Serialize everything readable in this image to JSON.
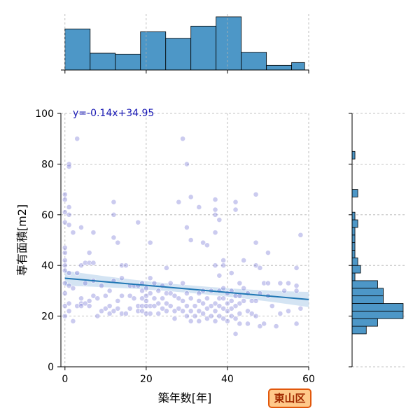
{
  "colors": {
    "scatter": "#6b6bd0",
    "scatter_dark": "#1f1f8f",
    "regression_line": "#1f77b4",
    "ci_band": "#c6dbef",
    "hist_fill": "#4d97c7",
    "hist_edge": "#000000",
    "badge_bg": "#ffc98a",
    "badge_border": "#e2580c",
    "badge_text": "#a22a00"
  },
  "badge": {
    "text": "東山区"
  },
  "chart_data": [
    {
      "type": "scatter",
      "xlabel": "築年数[年]",
      "ylabel": "専有面積[m2]",
      "xlim": [
        -1,
        60
      ],
      "ylim": [
        0,
        100
      ],
      "xticks": [
        0,
        20,
        40,
        60
      ],
      "yticks": [
        0,
        20,
        40,
        60,
        80,
        100
      ],
      "grid": true,
      "annotation": "y=-0.14x+34.95",
      "regression": {
        "slope": -0.14,
        "intercept": 34.95,
        "ci_half_width_at_ends": 3,
        "ci_half_width_at_center": 1.5
      },
      "points": [
        [
          0,
          68
        ],
        [
          0,
          66
        ],
        [
          0,
          61
        ],
        [
          0,
          57
        ],
        [
          0,
          47
        ],
        [
          0,
          45
        ],
        [
          0,
          42
        ],
        [
          0,
          40
        ],
        [
          0,
          38
        ],
        [
          0,
          33
        ],
        [
          0,
          29
        ],
        [
          0,
          24
        ],
        [
          0,
          20
        ],
        [
          1,
          80
        ],
        [
          1,
          79
        ],
        [
          1,
          63
        ],
        [
          1,
          60
        ],
        [
          1,
          56
        ],
        [
          1,
          37
        ],
        [
          1,
          32
        ],
        [
          1,
          25
        ],
        [
          1,
          22
        ],
        [
          2,
          18
        ],
        [
          2,
          31
        ],
        [
          2,
          53
        ],
        [
          3,
          90
        ],
        [
          3,
          37
        ],
        [
          3,
          24
        ],
        [
          4,
          55
        ],
        [
          4,
          40
        ],
        [
          4,
          27
        ],
        [
          4,
          25
        ],
        [
          4,
          24
        ],
        [
          5,
          41
        ],
        [
          5,
          33
        ],
        [
          5,
          25
        ],
        [
          6,
          45
        ],
        [
          6,
          41
        ],
        [
          6,
          26
        ],
        [
          6,
          24
        ],
        [
          7,
          53
        ],
        [
          7,
          41
        ],
        [
          7,
          34
        ],
        [
          7,
          28
        ],
        [
          8,
          27
        ],
        [
          8,
          20
        ],
        [
          9,
          32
        ],
        [
          9,
          22
        ],
        [
          10,
          28
        ],
        [
          10,
          23
        ],
        [
          11,
          30
        ],
        [
          11,
          24
        ],
        [
          11,
          21
        ],
        [
          12,
          65
        ],
        [
          12,
          51
        ],
        [
          12,
          60
        ],
        [
          12,
          34
        ],
        [
          12,
          22
        ],
        [
          13,
          49
        ],
        [
          13,
          26
        ],
        [
          13,
          23
        ],
        [
          14,
          40
        ],
        [
          14,
          35
        ],
        [
          14,
          21
        ],
        [
          14,
          28
        ],
        [
          15,
          40
        ],
        [
          15,
          21
        ],
        [
          16,
          28
        ],
        [
          16,
          23
        ],
        [
          16,
          32
        ],
        [
          17,
          32
        ],
        [
          17,
          27
        ],
        [
          18,
          57
        ],
        [
          18,
          32
        ],
        [
          18,
          24
        ],
        [
          18,
          22
        ],
        [
          19,
          33
        ],
        [
          19,
          30
        ],
        [
          19,
          27
        ],
        [
          19,
          24
        ],
        [
          19,
          22
        ],
        [
          20,
          31
        ],
        [
          20,
          28
        ],
        [
          20,
          26
        ],
        [
          20,
          24
        ],
        [
          20,
          21
        ],
        [
          21,
          49
        ],
        [
          21,
          35
        ],
        [
          21,
          29
        ],
        [
          21,
          24
        ],
        [
          21,
          21
        ],
        [
          22,
          33
        ],
        [
          22,
          27
        ],
        [
          22,
          24
        ],
        [
          23,
          30
        ],
        [
          23,
          25
        ],
        [
          23,
          21
        ],
        [
          24,
          32
        ],
        [
          24,
          27
        ],
        [
          24,
          23
        ],
        [
          25,
          39
        ],
        [
          25,
          29
        ],
        [
          25,
          25
        ],
        [
          25,
          22
        ],
        [
          26,
          33
        ],
        [
          26,
          29
        ],
        [
          26,
          24
        ],
        [
          27,
          28
        ],
        [
          27,
          22
        ],
        [
          27,
          19
        ],
        [
          28,
          65
        ],
        [
          28,
          27
        ],
        [
          28,
          23
        ],
        [
          29,
          90
        ],
        [
          29,
          33
        ],
        [
          29,
          26
        ],
        [
          29,
          22
        ],
        [
          30,
          80
        ],
        [
          30,
          55
        ],
        [
          30,
          29
        ],
        [
          30,
          24
        ],
        [
          30,
          20
        ],
        [
          31,
          67
        ],
        [
          31,
          50
        ],
        [
          31,
          27
        ],
        [
          31,
          22
        ],
        [
          31,
          18
        ],
        [
          32,
          24
        ],
        [
          32,
          20
        ],
        [
          33,
          63
        ],
        [
          33,
          29
        ],
        [
          33,
          26
        ],
        [
          33,
          22
        ],
        [
          33,
          18
        ],
        [
          34,
          49
        ],
        [
          34,
          30
        ],
        [
          34,
          25
        ],
        [
          34,
          21
        ],
        [
          35,
          27
        ],
        [
          35,
          23
        ],
        [
          35,
          19
        ],
        [
          36,
          30
        ],
        [
          36,
          24
        ],
        [
          36,
          20
        ],
        [
          37,
          66
        ],
        [
          37,
          62
        ],
        [
          37,
          60
        ],
        [
          37,
          53
        ],
        [
          37,
          40
        ],
        [
          37,
          25
        ],
        [
          37,
          22
        ],
        [
          37,
          18
        ],
        [
          38,
          58
        ],
        [
          38,
          36
        ],
        [
          38,
          30
        ],
        [
          38,
          27
        ],
        [
          38,
          24
        ],
        [
          38,
          20
        ],
        [
          39,
          42
        ],
        [
          39,
          40
        ],
        [
          39,
          31
        ],
        [
          39,
          27
        ],
        [
          39,
          23
        ],
        [
          39,
          19
        ],
        [
          40,
          29
        ],
        [
          40,
          25
        ],
        [
          40,
          22
        ],
        [
          40,
          18
        ],
        [
          41,
          37
        ],
        [
          41,
          30
        ],
        [
          41,
          26
        ],
        [
          41,
          23
        ],
        [
          41,
          20
        ],
        [
          42,
          65
        ],
        [
          42,
          62
        ],
        [
          42,
          28
        ],
        [
          42,
          24
        ],
        [
          42,
          19
        ],
        [
          42,
          13
        ],
        [
          43,
          33
        ],
        [
          43,
          28
        ],
        [
          43,
          25
        ],
        [
          43,
          21
        ],
        [
          43,
          17
        ],
        [
          44,
          42
        ],
        [
          44,
          31
        ],
        [
          44,
          26
        ],
        [
          45,
          29
        ],
        [
          45,
          22
        ],
        [
          45,
          17
        ],
        [
          46,
          26
        ],
        [
          46,
          21
        ],
        [
          47,
          68
        ],
        [
          47,
          49
        ],
        [
          47,
          40
        ],
        [
          47,
          26
        ],
        [
          47,
          20
        ],
        [
          48,
          39
        ],
        [
          48,
          29
        ],
        [
          48,
          16
        ],
        [
          49,
          33
        ],
        [
          49,
          17
        ],
        [
          50,
          45
        ],
        [
          50,
          33
        ],
        [
          50,
          28
        ],
        [
          51,
          24
        ],
        [
          52,
          16
        ],
        [
          53,
          33
        ],
        [
          53,
          21
        ],
        [
          54,
          30
        ],
        [
          55,
          33
        ],
        [
          55,
          22
        ],
        [
          57,
          39
        ],
        [
          57,
          32
        ],
        [
          57,
          30
        ],
        [
          57,
          17
        ],
        [
          58,
          52
        ],
        [
          58,
          23
        ],
        [
          35,
          48
        ]
      ]
    },
    {
      "type": "bar",
      "orientation": "vertical",
      "role": "marginal-x-histogram",
      "bin_edges": [
        0,
        6.2,
        12.4,
        18.6,
        24.8,
        31,
        37.2,
        43.4,
        49.6,
        55.8,
        59
      ],
      "values": [
        22,
        9,
        8.5,
        20.5,
        17,
        23.5,
        28.5,
        9.5,
        2.5,
        4
      ]
    },
    {
      "type": "bar",
      "orientation": "horizontal",
      "role": "marginal-y-histogram",
      "bin_edges": [
        13,
        16,
        19,
        22,
        25,
        28,
        31,
        34,
        37,
        40,
        43,
        46,
        49,
        52,
        55,
        58,
        61,
        64,
        67,
        70,
        73,
        76,
        79,
        82,
        85,
        88,
        91
      ],
      "values": [
        5,
        9,
        18,
        18,
        11,
        11,
        9,
        1,
        3,
        2,
        1,
        1,
        1,
        1,
        2,
        1,
        0,
        0,
        2,
        0,
        0,
        0,
        0,
        1,
        0,
        0
      ]
    }
  ]
}
